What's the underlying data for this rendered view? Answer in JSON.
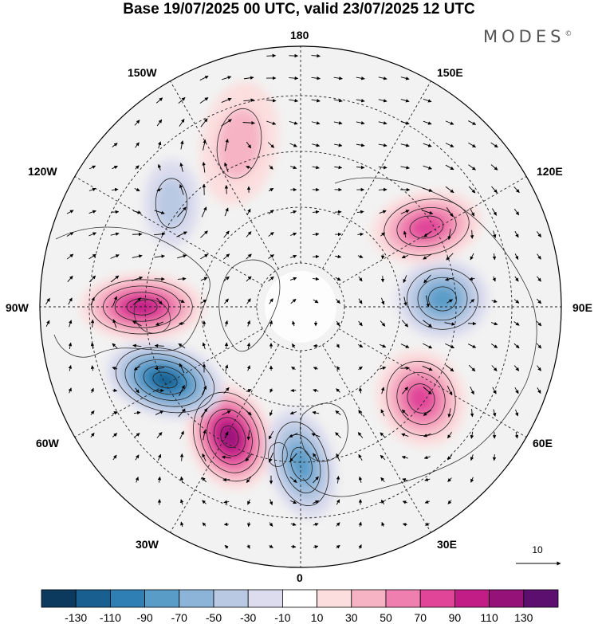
{
  "title": "Base 19/07/2025 00 UTC, valid 23/07/2025 12 UTC",
  "logo": "MODES",
  "logo_mark": "©",
  "longitude_labels": {
    "top": "180",
    "bottom": "0",
    "left": "90W",
    "right": "90E",
    "upper_left": "150W",
    "upper_right": "150E",
    "mid_upper_left": "120W",
    "mid_upper_right": "120E",
    "mid_lower_left": "60W",
    "mid_lower_right": "60E",
    "lower_left": "30W",
    "lower_right": "30E"
  },
  "reference_vector": {
    "label": "10"
  },
  "colorbar": {
    "ticks": [
      "-130",
      "-110",
      "-90",
      "-70",
      "-50",
      "-30",
      "-10",
      "10",
      "30",
      "50",
      "70",
      "90",
      "110",
      "130"
    ],
    "colors": [
      "#0b3a5e",
      "#195f8f",
      "#2f7fb5",
      "#5a9cc8",
      "#8bb4d8",
      "#b9c9e3",
      "#dcdcee",
      "#ffffff",
      "#fcdede",
      "#f6b3c4",
      "#ef7fae",
      "#e04598",
      "#c21c86",
      "#951279",
      "#5c0f6e"
    ]
  },
  "anomalies": [
    {
      "name": "anomaly-high-60w-30w",
      "sign": "positive",
      "peak": 110
    },
    {
      "name": "anomaly-low-north-atlantic",
      "sign": "negative",
      "peak": -110
    },
    {
      "name": "anomaly-high-canada",
      "sign": "positive",
      "peak": 90
    },
    {
      "name": "anomaly-low-europe",
      "sign": "negative",
      "peak": -70
    },
    {
      "name": "anomaly-high-west-siberia",
      "sign": "positive",
      "peak": 70
    },
    {
      "name": "anomaly-low-central-siberia",
      "sign": "negative",
      "peak": -70
    },
    {
      "name": "anomaly-high-east-siberia",
      "sign": "positive",
      "peak": 70
    },
    {
      "name": "anomaly-low-alaska",
      "sign": "negative",
      "peak": -30
    },
    {
      "name": "anomaly-high-pacific",
      "sign": "positive",
      "peak": 30
    }
  ]
}
